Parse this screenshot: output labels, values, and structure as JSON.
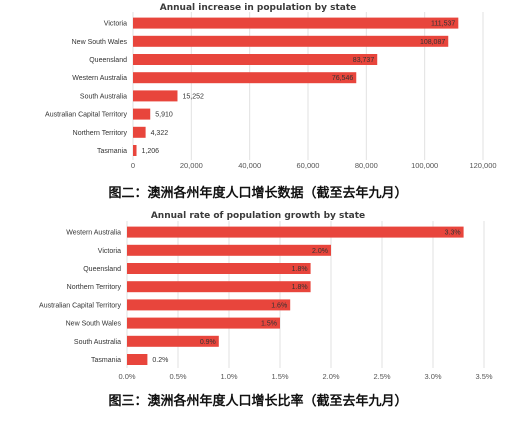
{
  "colors": {
    "bar": "#e8453c",
    "grid": "#e2e2e2",
    "text": "#333333"
  },
  "chart_data": [
    {
      "type": "bar",
      "orientation": "horizontal",
      "title": "Annual increase in population by state",
      "categories": [
        "Victoria",
        "New South Wales",
        "Queensland",
        "Western Australia",
        "South Australia",
        "Australian Capital Territory",
        "Northern Territory",
        "Tasmania"
      ],
      "values": [
        111537,
        108087,
        83737,
        76546,
        15252,
        5910,
        4322,
        1206
      ],
      "value_labels": [
        "111,537",
        "108,087",
        "83,737",
        "76,546",
        "15,252",
        "5,910",
        "4,322",
        "1,206"
      ],
      "xlim": [
        0,
        120000
      ],
      "xticks": [
        0,
        20000,
        40000,
        60000,
        80000,
        100000,
        120000
      ],
      "xtick_labels": [
        "0",
        "20,000",
        "40,000",
        "60,000",
        "80,000",
        "100,000",
        "120,000"
      ],
      "grid": true,
      "caption": "图二：澳洲各州年度人口增长数据（截至去年九月）"
    },
    {
      "type": "bar",
      "orientation": "horizontal",
      "title": "Annual rate of population growth by state",
      "categories": [
        "Western Australia",
        "Victoria",
        "Queensland",
        "Northern Territory",
        "Australian Capital Territory",
        "New South Wales",
        "South Australia",
        "Tasmania"
      ],
      "values": [
        3.3,
        2.0,
        1.8,
        1.8,
        1.6,
        1.5,
        0.9,
        0.2
      ],
      "value_labels": [
        "3.3%",
        "2.0%",
        "1.8%",
        "1.8%",
        "1.6%",
        "1.5%",
        "0.9%",
        "0.2%"
      ],
      "xlim": [
        0,
        3.5
      ],
      "xticks": [
        0,
        0.5,
        1.0,
        1.5,
        2.0,
        2.5,
        3.0,
        3.5
      ],
      "xtick_labels": [
        "0.0%",
        "0.5%",
        "1.0%",
        "1.5%",
        "2.0%",
        "2.5%",
        "3.0%",
        "3.5%"
      ],
      "grid": true,
      "caption": "图三：澳洲各州年度人口增长比率（截至去年九月）"
    }
  ]
}
